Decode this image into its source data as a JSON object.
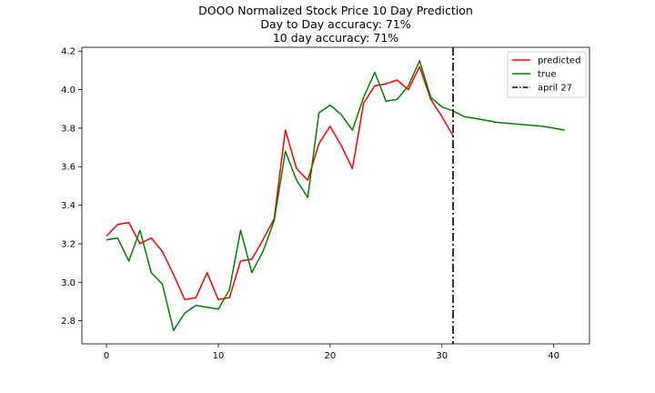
{
  "chart_data": {
    "type": "line",
    "title_lines": [
      "DOOO Normalized Stock Price 10 Day Prediction",
      "Day to Day accuracy: 71%",
      "10 day accuracy: 71%"
    ],
    "xlim": [
      -2.2,
      43.2
    ],
    "ylim": [
      2.68,
      4.22
    ],
    "xticks": [
      0,
      10,
      20,
      30,
      40
    ],
    "yticks": [
      2.8,
      3.0,
      3.2,
      3.4,
      3.6,
      3.8,
      4.0,
      4.2
    ],
    "xtick_labels": [
      "0",
      "10",
      "20",
      "30",
      "40"
    ],
    "ytick_labels": [
      "2.8",
      "3.0",
      "3.2",
      "3.4",
      "3.6",
      "3.8",
      "4.0",
      "4.2"
    ],
    "legend_position": "top-right",
    "grid": false,
    "series": [
      {
        "name": "predicted",
        "color": "#ff0000",
        "x": [
          0,
          1,
          2,
          3,
          4,
          5,
          6,
          7,
          8,
          9,
          10,
          11,
          12,
          13,
          14,
          15,
          16,
          17,
          18,
          19,
          20,
          21,
          22,
          23,
          24,
          25,
          26,
          27,
          28,
          29,
          30,
          31
        ],
        "y": [
          3.24,
          3.3,
          3.31,
          3.2,
          3.23,
          3.16,
          3.04,
          2.91,
          2.92,
          3.05,
          2.91,
          2.92,
          3.11,
          3.12,
          3.22,
          3.33,
          3.79,
          3.59,
          3.53,
          3.72,
          3.81,
          3.71,
          3.59,
          3.93,
          4.02,
          4.03,
          4.05,
          4.0,
          4.12,
          3.95,
          3.86,
          3.76
        ]
      },
      {
        "name": "true",
        "color": "#008000",
        "x": [
          0,
          1,
          2,
          3,
          4,
          5,
          6,
          7,
          8,
          9,
          10,
          11,
          12,
          13,
          14,
          15,
          16,
          17,
          18,
          19,
          20,
          21,
          22,
          23,
          24,
          25,
          26,
          27,
          28,
          29,
          30,
          31,
          32,
          33,
          34,
          35,
          36,
          37,
          38,
          39,
          40,
          41
        ],
        "y": [
          3.22,
          3.23,
          3.11,
          3.27,
          3.05,
          2.99,
          2.75,
          2.84,
          2.88,
          2.87,
          2.86,
          2.96,
          3.27,
          3.05,
          3.16,
          3.32,
          3.68,
          3.53,
          3.44,
          3.88,
          3.92,
          3.87,
          3.79,
          3.96,
          4.09,
          3.94,
          3.95,
          4.02,
          4.15,
          3.96,
          3.91,
          3.89,
          3.86,
          3.85,
          3.84,
          3.83,
          3.825,
          3.82,
          3.815,
          3.81,
          3.8,
          3.79
        ]
      }
    ],
    "vline": {
      "name": "april 27",
      "x": 31,
      "color": "#000000",
      "style": "dashdot"
    }
  }
}
